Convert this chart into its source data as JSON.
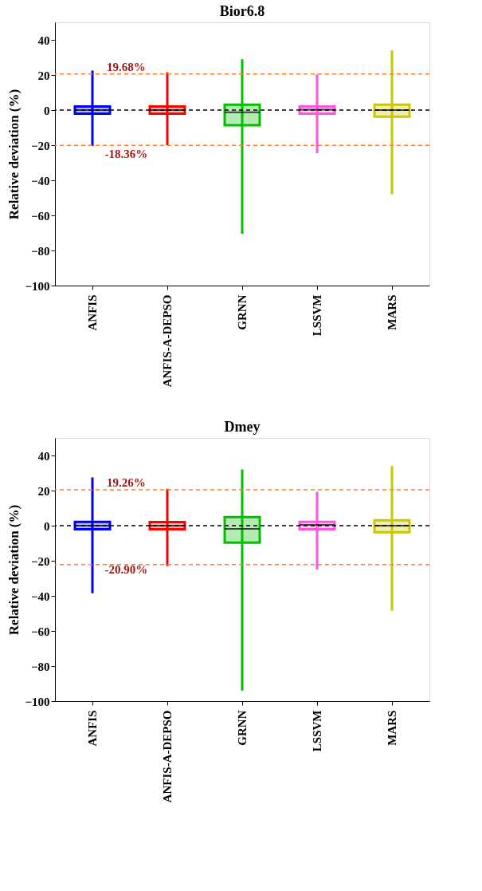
{
  "chart_data": [
    {
      "type": "box",
      "title": "Bior6.8",
      "ylabel": "Relative deviation (%)",
      "categories": [
        "ANFIS",
        "ANFIS-A-DEPSO",
        "GRNN",
        "LSSVM",
        "MARS"
      ],
      "colors": [
        "#0000ff",
        "#ff0000",
        "#00c000",
        "#ff55dd",
        "#c8c800"
      ],
      "boxes": [
        {
          "low": -20.5,
          "q1": -2,
          "median": 0,
          "q3": 2,
          "high": 22.5
        },
        {
          "low": -20,
          "q1": -2,
          "median": 0,
          "q3": 2,
          "high": 21.5
        },
        {
          "low": -70.5,
          "q1": -8.6,
          "median": -1.2,
          "q3": 3.1,
          "high": 29
        },
        {
          "low": -24.5,
          "q1": -2.1,
          "median": 0.2,
          "q3": 2.1,
          "high": 20.3
        },
        {
          "low": -48,
          "q1": -3.7,
          "median": 0,
          "q3": 3.1,
          "high": 34
        }
      ],
      "ylim": [
        -100,
        50
      ],
      "yticks": [
        -100,
        -80,
        -60,
        -40,
        -20,
        0,
        20,
        40
      ],
      "annotations": [
        "19.68%",
        "-18.36%"
      ],
      "ref_lines": [
        {
          "axis": "y",
          "value": 20.6,
          "color": "#ff7f27",
          "line_style": "dashed"
        },
        {
          "axis": "y",
          "value": -20.1,
          "color": "#ff7f27",
          "line_style": "dashed"
        },
        {
          "axis": "y",
          "value": 0,
          "color": "#000000",
          "line_style": "dashed"
        }
      ],
      "grid": false
    },
    {
      "type": "box",
      "title": "Dmey",
      "ylabel": "Relative deviation (%)",
      "categories": [
        "ANFIS",
        "ANFIS-A-DEPSO",
        "GRNN",
        "LSSVM",
        "MARS"
      ],
      "colors": [
        "#0000ff",
        "#ff0000",
        "#00c000",
        "#ff55dd",
        "#c8c800"
      ],
      "boxes": [
        {
          "low": -38.5,
          "q1": -2,
          "median": 0,
          "q3": 2.2,
          "high": 27.5
        },
        {
          "low": -23,
          "q1": -2,
          "median": 0,
          "q3": 2,
          "high": 21
        },
        {
          "low": -94,
          "q1": -9.7,
          "median": -1.8,
          "q3": 4.9,
          "high": 32
        },
        {
          "low": -25,
          "q1": -2,
          "median": 0.4,
          "q3": 2.2,
          "high": 19.3
        },
        {
          "low": -48.5,
          "q1": -3.8,
          "median": 0,
          "q3": 3.1,
          "high": 34
        }
      ],
      "ylim": [
        -100,
        50
      ],
      "yticks": [
        -100,
        -80,
        -60,
        -40,
        -20,
        0,
        20,
        40
      ],
      "annotations": [
        "19.26%",
        "-20.90%"
      ],
      "ref_lines": [
        {
          "axis": "y",
          "value": 20.5,
          "color": "#ff7f27",
          "line_style": "dashed"
        },
        {
          "axis": "y",
          "value": -22.2,
          "color": "#ff7f27",
          "line_style": "dashed"
        },
        {
          "axis": "y",
          "value": 0,
          "color": "#000000",
          "line_style": "dashed"
        }
      ],
      "grid": false
    }
  ]
}
